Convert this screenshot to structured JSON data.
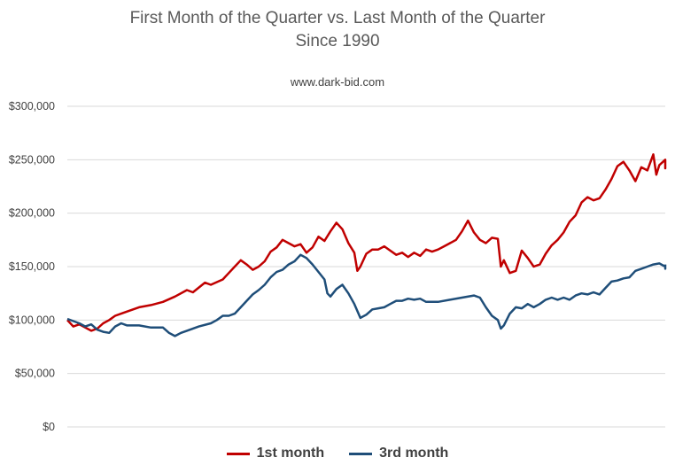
{
  "title_line1": "First Month of the Quarter vs. Last Month of the Quarter",
  "title_line2": "Since 1990",
  "subtitle": "www.dark-bid.com",
  "chart_data": {
    "type": "line",
    "title": "First Month of the Quarter vs. Last Month of the Quarter Since 1990",
    "subtitle": "www.dark-bid.com",
    "xlabel": "",
    "ylabel": "",
    "ylim": [
      0,
      300000
    ],
    "yticks": [
      0,
      50000,
      100000,
      150000,
      200000,
      250000,
      300000
    ],
    "ytick_labels": [
      "$0",
      "$50,000",
      "$100,000",
      "$150,000",
      "$200,000",
      "$250,000",
      "$300,000"
    ],
    "xlim": [
      0,
      100
    ],
    "grid": true,
    "legend_position": "bottom",
    "series": [
      {
        "name": "1st month",
        "color": "#c00000",
        "points": [
          [
            0,
            100000
          ],
          [
            1,
            94000
          ],
          [
            2,
            96000
          ],
          [
            3,
            93000
          ],
          [
            4,
            90000
          ],
          [
            5,
            92000
          ],
          [
            6,
            97000
          ],
          [
            7,
            100000
          ],
          [
            8,
            104000
          ],
          [
            9,
            106000
          ],
          [
            10,
            108000
          ],
          [
            12,
            112000
          ],
          [
            14,
            114000
          ],
          [
            16,
            117000
          ],
          [
            18,
            122000
          ],
          [
            20,
            128000
          ],
          [
            21,
            126000
          ],
          [
            23,
            135000
          ],
          [
            24,
            133000
          ],
          [
            26,
            138000
          ],
          [
            27,
            144000
          ],
          [
            28,
            150000
          ],
          [
            29,
            156000
          ],
          [
            30,
            152000
          ],
          [
            31,
            147000
          ],
          [
            32,
            150000
          ],
          [
            33,
            155000
          ],
          [
            34,
            164000
          ],
          [
            35,
            168000
          ],
          [
            36,
            175000
          ],
          [
            37,
            172000
          ],
          [
            38,
            169000
          ],
          [
            39,
            171000
          ],
          [
            40,
            163000
          ],
          [
            41,
            168000
          ],
          [
            42,
            178000
          ],
          [
            43,
            174000
          ],
          [
            44,
            183000
          ],
          [
            45,
            191000
          ],
          [
            46,
            185000
          ],
          [
            47,
            172000
          ],
          [
            48,
            163000
          ],
          [
            48.5,
            146000
          ],
          [
            49,
            150000
          ],
          [
            50,
            162000
          ],
          [
            51,
            166000
          ],
          [
            52,
            166000
          ],
          [
            53,
            169000
          ],
          [
            54,
            165000
          ],
          [
            55,
            161000
          ],
          [
            56,
            163000
          ],
          [
            57,
            159000
          ],
          [
            58,
            163000
          ],
          [
            59,
            160000
          ],
          [
            60,
            166000
          ],
          [
            61,
            164000
          ],
          [
            62,
            166000
          ],
          [
            63,
            169000
          ],
          [
            64,
            172000
          ],
          [
            65,
            175000
          ],
          [
            66,
            183000
          ],
          [
            67,
            193000
          ],
          [
            68,
            182000
          ],
          [
            69,
            175000
          ],
          [
            70,
            172000
          ],
          [
            71,
            177000
          ],
          [
            72,
            176000
          ],
          [
            72.5,
            150000
          ],
          [
            73,
            156000
          ],
          [
            74,
            144000
          ],
          [
            75,
            146000
          ],
          [
            76,
            165000
          ],
          [
            77,
            158000
          ],
          [
            78,
            150000
          ],
          [
            79,
            152000
          ],
          [
            80,
            162000
          ],
          [
            81,
            170000
          ],
          [
            82,
            175000
          ],
          [
            83,
            182000
          ],
          [
            84,
            192000
          ],
          [
            85,
            198000
          ],
          [
            86,
            210000
          ],
          [
            87,
            215000
          ],
          [
            88,
            212000
          ],
          [
            89,
            214000
          ],
          [
            90,
            222000
          ],
          [
            91,
            232000
          ],
          [
            92,
            244000
          ],
          [
            93,
            248000
          ],
          [
            94,
            240000
          ],
          [
            95,
            230000
          ],
          [
            96,
            243000
          ],
          [
            97,
            240000
          ],
          [
            98,
            255000
          ],
          [
            98.5,
            236000
          ],
          [
            99,
            245000
          ],
          [
            100,
            250000
          ],
          [
            101,
            246000
          ],
          [
            102,
            242000
          ],
          [
            103,
            248000
          ]
        ]
      },
      {
        "name": "3rd month",
        "color": "#1f4e79",
        "points": [
          [
            0,
            101000
          ],
          [
            1,
            99000
          ],
          [
            2,
            97000
          ],
          [
            3,
            94000
          ],
          [
            4,
            96000
          ],
          [
            5,
            91000
          ],
          [
            6,
            89000
          ],
          [
            7,
            88000
          ],
          [
            8,
            94000
          ],
          [
            9,
            97000
          ],
          [
            10,
            95000
          ],
          [
            12,
            95000
          ],
          [
            14,
            93000
          ],
          [
            16,
            93000
          ],
          [
            17,
            88000
          ],
          [
            18,
            85000
          ],
          [
            19,
            88000
          ],
          [
            20,
            90000
          ],
          [
            22,
            94000
          ],
          [
            24,
            97000
          ],
          [
            25,
            100000
          ],
          [
            26,
            104000
          ],
          [
            27,
            104000
          ],
          [
            28,
            106000
          ],
          [
            29,
            112000
          ],
          [
            30,
            118000
          ],
          [
            31,
            124000
          ],
          [
            32,
            128000
          ],
          [
            33,
            133000
          ],
          [
            34,
            140000
          ],
          [
            35,
            145000
          ],
          [
            36,
            147000
          ],
          [
            37,
            152000
          ],
          [
            38,
            155000
          ],
          [
            39,
            161000
          ],
          [
            40,
            158000
          ],
          [
            41,
            152000
          ],
          [
            42,
            145000
          ],
          [
            43,
            138000
          ],
          [
            43.5,
            125000
          ],
          [
            44,
            122000
          ],
          [
            45,
            129000
          ],
          [
            46,
            133000
          ],
          [
            47,
            125000
          ],
          [
            48,
            115000
          ],
          [
            49,
            102000
          ],
          [
            50,
            105000
          ],
          [
            51,
            110000
          ],
          [
            52,
            111000
          ],
          [
            53,
            112000
          ],
          [
            54,
            115000
          ],
          [
            55,
            118000
          ],
          [
            56,
            118000
          ],
          [
            57,
            120000
          ],
          [
            58,
            119000
          ],
          [
            59,
            120000
          ],
          [
            60,
            117000
          ],
          [
            62,
            117000
          ],
          [
            64,
            119000
          ],
          [
            66,
            121000
          ],
          [
            68,
            123000
          ],
          [
            69,
            121000
          ],
          [
            70,
            112000
          ],
          [
            71,
            104000
          ],
          [
            72,
            100000
          ],
          [
            72.5,
            92000
          ],
          [
            73,
            95000
          ],
          [
            74,
            106000
          ],
          [
            75,
            112000
          ],
          [
            76,
            111000
          ],
          [
            77,
            115000
          ],
          [
            78,
            112000
          ],
          [
            79,
            115000
          ],
          [
            80,
            119000
          ],
          [
            81,
            121000
          ],
          [
            82,
            119000
          ],
          [
            83,
            121000
          ],
          [
            84,
            119000
          ],
          [
            85,
            123000
          ],
          [
            86,
            125000
          ],
          [
            87,
            124000
          ],
          [
            88,
            126000
          ],
          [
            89,
            124000
          ],
          [
            90,
            130000
          ],
          [
            91,
            136000
          ],
          [
            92,
            137000
          ],
          [
            93,
            139000
          ],
          [
            94,
            140000
          ],
          [
            95,
            146000
          ],
          [
            96,
            148000
          ],
          [
            97,
            150000
          ],
          [
            98,
            152000
          ],
          [
            99,
            153000
          ],
          [
            100,
            150000
          ],
          [
            101,
            148000
          ],
          [
            102,
            150000
          ],
          [
            103,
            152000
          ]
        ]
      }
    ]
  }
}
